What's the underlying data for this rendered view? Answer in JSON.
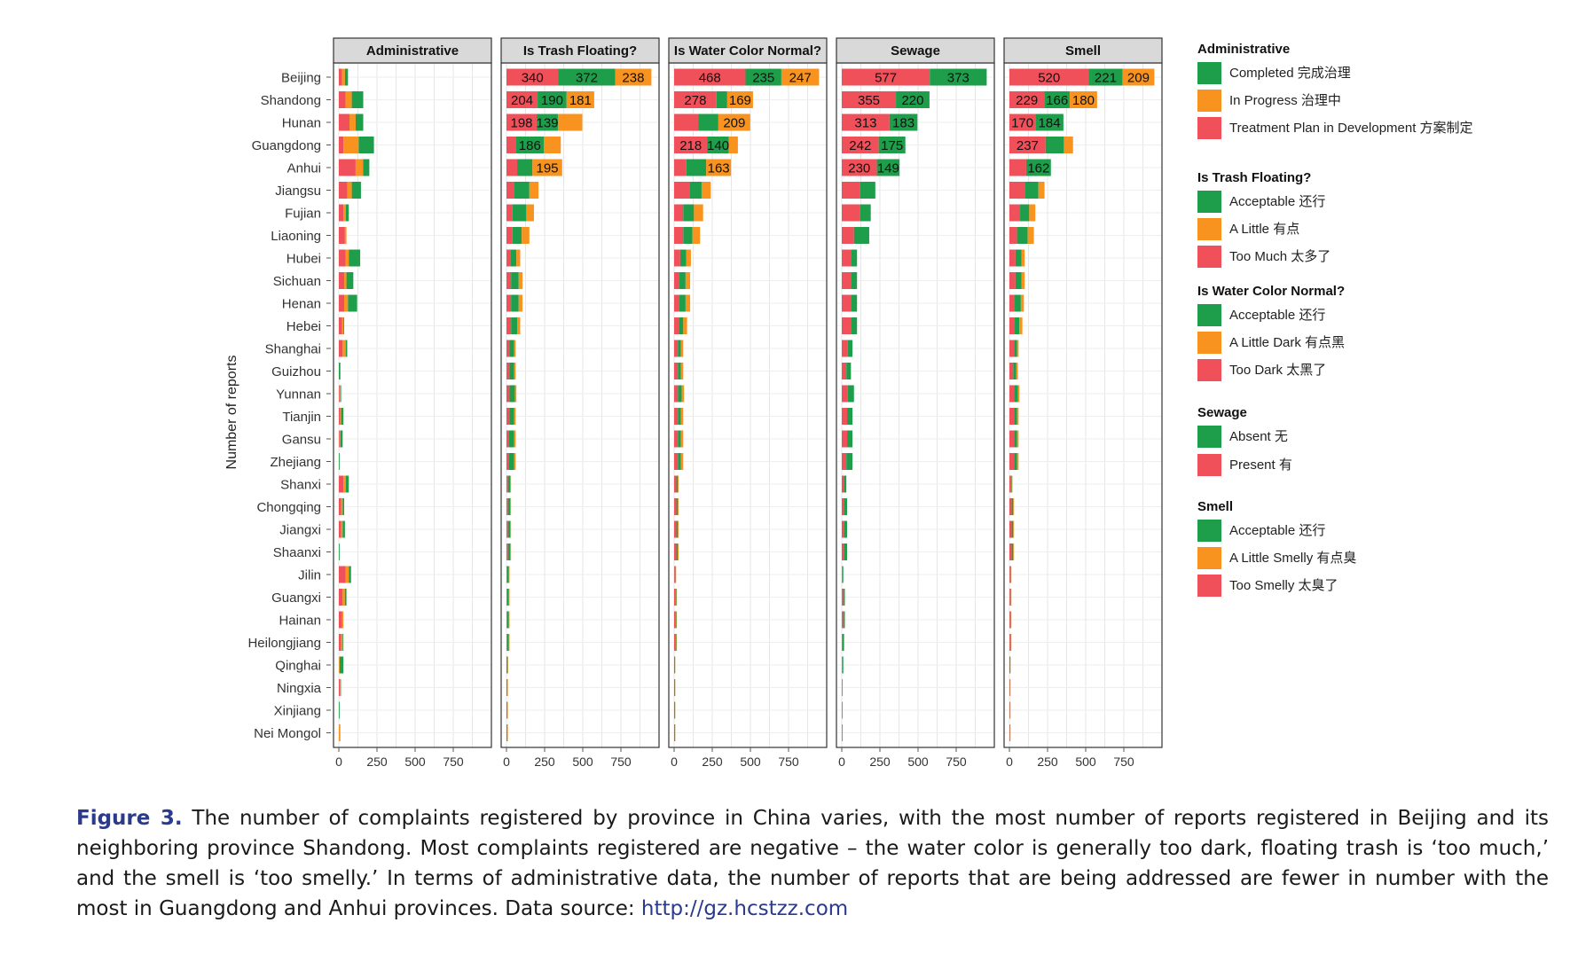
{
  "chart_data": {
    "type": "bar",
    "orientation": "horizontal",
    "stacked": true,
    "ylabel": "Number of reports",
    "grid": true,
    "legend_position": "right",
    "xlim": [
      0,
      1000
    ],
    "xticks": [
      "0",
      "250",
      "500",
      "750"
    ],
    "categories": [
      "Beijing",
      "Shandong",
      "Hunan",
      "Guangdong",
      "Anhui",
      "Jiangsu",
      "Fujian",
      "Liaoning",
      "Hubei",
      "Sichuan",
      "Henan",
      "Hebei",
      "Shanghai",
      "Guizhou",
      "Yunnan",
      "Tianjin",
      "Gansu",
      "Zhejiang",
      "Shanxi",
      "Chongqing",
      "Jiangxi",
      "Shaanxi",
      "Jilin",
      "Guangxi",
      "Hainan",
      "Heilongjiang",
      "Qinghai",
      "Ningxia",
      "Xinjiang",
      "Nei Mongol"
    ],
    "colors": {
      "green": "#1e9e4a",
      "orange": "#f7931e",
      "red": "#f0505a"
    },
    "panels": [
      {
        "title": "Administrative",
        "series": [
          {
            "name": "Treatment Plan in Development 方案制定",
            "color": "#f0505a",
            "values": [
              20,
              45,
              70,
              30,
              110,
              55,
              30,
              40,
              45,
              35,
              35,
              20,
              25,
              0,
              5,
              10,
              5,
              0,
              30,
              15,
              15,
              0,
              45,
              25,
              20,
              15,
              0,
              8,
              0,
              0
            ]
          },
          {
            "name": "In Progress 治理中",
            "color": "#f7931e",
            "values": [
              20,
              40,
              40,
              100,
              50,
              30,
              15,
              10,
              20,
              15,
              25,
              10,
              20,
              0,
              5,
              5,
              5,
              0,
              15,
              10,
              10,
              0,
              20,
              15,
              10,
              10,
              5,
              5,
              0,
              10
            ]
          },
          {
            "name": "Completed 完成治理",
            "color": "#1e9e4a",
            "values": [
              20,
              75,
              50,
              100,
              40,
              60,
              20,
              0,
              75,
              45,
              60,
              5,
              10,
              10,
              5,
              15,
              15,
              5,
              20,
              10,
              15,
              5,
              15,
              10,
              0,
              5,
              25,
              2,
              5,
              0
            ]
          }
        ]
      },
      {
        "title": "Is Trash Floating?",
        "series": [
          {
            "name": "Too Much 太多了",
            "color": "#f0505a",
            "values": [
              340,
              204,
              198,
              60,
              70,
              50,
              40,
              40,
              25,
              30,
              30,
              30,
              20,
              20,
              20,
              20,
              15,
              15,
              10,
              10,
              10,
              10,
              5,
              5,
              5,
              5,
              3,
              3,
              3,
              3
            ]
          },
          {
            "name": "Acceptable 还行",
            "color": "#1e9e4a",
            "values": [
              372,
              190,
              139,
              186,
              100,
              100,
              90,
              60,
              40,
              50,
              50,
              40,
              30,
              30,
              35,
              30,
              35,
              35,
              15,
              15,
              15,
              15,
              10,
              10,
              10,
              10,
              5,
              3,
              3,
              3
            ]
          },
          {
            "name": "A Little 有点",
            "color": "#f7931e",
            "values": [
              238,
              181,
              160,
              110,
              195,
              60,
              50,
              50,
              25,
              25,
              25,
              20,
              10,
              10,
              10,
              10,
              10,
              10,
              5,
              5,
              5,
              5,
              5,
              5,
              5,
              5,
              3,
              3,
              3,
              3
            ]
          }
        ]
      },
      {
        "title": "Is Water Color Normal?",
        "series": [
          {
            "name": "Too Dark 太黑了",
            "color": "#f0505a",
            "values": [
              468,
              278,
              160,
              218,
              80,
              100,
              60,
              60,
              40,
              35,
              35,
              30,
              25,
              25,
              25,
              25,
              25,
              25,
              15,
              15,
              15,
              15,
              5,
              10,
              10,
              10,
              3,
              3,
              3,
              3
            ]
          },
          {
            "name": "Acceptable 还行",
            "color": "#1e9e4a",
            "values": [
              235,
              70,
              130,
              140,
              130,
              80,
              70,
              60,
              40,
              40,
              40,
              30,
              20,
              20,
              25,
              20,
              20,
              20,
              10,
              10,
              10,
              10,
              5,
              5,
              5,
              5,
              3,
              3,
              3,
              3
            ]
          },
          {
            "name": "A Little Dark 有点黑",
            "color": "#f7931e",
            "values": [
              247,
              169,
              209,
              60,
              163,
              60,
              60,
              50,
              30,
              30,
              30,
              25,
              15,
              15,
              15,
              15,
              15,
              15,
              5,
              5,
              5,
              5,
              3,
              3,
              3,
              3,
              2,
              2,
              2,
              2
            ]
          }
        ]
      },
      {
        "title": "Sewage",
        "series": [
          {
            "name": "Present 有",
            "color": "#f0505a",
            "values": [
              577,
              355,
              313,
              242,
              230,
              120,
              120,
              80,
              60,
              60,
              60,
              60,
              40,
              30,
              40,
              35,
              35,
              30,
              15,
              15,
              15,
              15,
              5,
              10,
              10,
              5,
              5,
              3,
              3,
              3
            ]
          },
          {
            "name": "Absent 无",
            "color": "#1e9e4a",
            "values": [
              373,
              220,
              183,
              175,
              149,
              100,
              70,
              100,
              40,
              40,
              40,
              40,
              30,
              30,
              40,
              35,
              35,
              40,
              15,
              20,
              20,
              20,
              5,
              10,
              10,
              10,
              5,
              2,
              2,
              2
            ]
          }
        ]
      },
      {
        "title": "Smell",
        "series": [
          {
            "name": "Too Smelly 太臭了",
            "color": "#f0505a",
            "values": [
              520,
              229,
              170,
              237,
              110,
              100,
              70,
              50,
              40,
              40,
              35,
              35,
              30,
              25,
              30,
              30,
              30,
              30,
              10,
              15,
              15,
              15,
              5,
              5,
              5,
              5,
              3,
              3,
              3,
              3
            ]
          },
          {
            "name": "Acceptable 还行",
            "color": "#1e9e4a",
            "values": [
              221,
              166,
              184,
              120,
              162,
              90,
              60,
              70,
              40,
              40,
              40,
              30,
              20,
              20,
              25,
              20,
              20,
              20,
              5,
              10,
              10,
              10,
              5,
              5,
              5,
              5,
              3,
              2,
              2,
              2
            ]
          },
          {
            "name": "A Little Smelly 有点臭",
            "color": "#f7931e",
            "values": [
              209,
              180,
              0,
              60,
              0,
              40,
              40,
              40,
              20,
              20,
              20,
              20,
              10,
              10,
              10,
              10,
              10,
              10,
              5,
              5,
              5,
              5,
              3,
              3,
              3,
              3,
              2,
              2,
              2,
              2
            ]
          }
        ]
      }
    ],
    "data_labels": [
      {
        "panel": 1,
        "row": 0,
        "series": 0,
        "text": "340"
      },
      {
        "panel": 1,
        "row": 0,
        "series": 1,
        "text": "372"
      },
      {
        "panel": 1,
        "row": 0,
        "series": 2,
        "text": "238"
      },
      {
        "panel": 1,
        "row": 1,
        "series": 0,
        "text": "204"
      },
      {
        "panel": 1,
        "row": 1,
        "series": 1,
        "text": "190"
      },
      {
        "panel": 1,
        "row": 1,
        "series": 2,
        "text": "181"
      },
      {
        "panel": 1,
        "row": 2,
        "series": 0,
        "text": "198"
      },
      {
        "panel": 1,
        "row": 2,
        "series": 1,
        "text": "139"
      },
      {
        "panel": 1,
        "row": 3,
        "series": 1,
        "text": "186"
      },
      {
        "panel": 1,
        "row": 4,
        "series": 2,
        "text": "195"
      },
      {
        "panel": 2,
        "row": 0,
        "series": 0,
        "text": "468"
      },
      {
        "panel": 2,
        "row": 0,
        "series": 1,
        "text": "235"
      },
      {
        "panel": 2,
        "row": 0,
        "series": 2,
        "text": "247"
      },
      {
        "panel": 2,
        "row": 1,
        "series": 0,
        "text": "278"
      },
      {
        "panel": 2,
        "row": 1,
        "series": 2,
        "text": "169"
      },
      {
        "panel": 2,
        "row": 2,
        "series": 2,
        "text": "209"
      },
      {
        "panel": 2,
        "row": 3,
        "series": 0,
        "text": "218"
      },
      {
        "panel": 2,
        "row": 3,
        "series": 1,
        "text": "140"
      },
      {
        "panel": 2,
        "row": 4,
        "series": 2,
        "text": "163"
      },
      {
        "panel": 3,
        "row": 0,
        "series": 0,
        "text": "577"
      },
      {
        "panel": 3,
        "row": 0,
        "series": 1,
        "text": "373"
      },
      {
        "panel": 3,
        "row": 1,
        "series": 0,
        "text": "355"
      },
      {
        "panel": 3,
        "row": 1,
        "series": 1,
        "text": "220"
      },
      {
        "panel": 3,
        "row": 2,
        "series": 0,
        "text": "313"
      },
      {
        "panel": 3,
        "row": 2,
        "series": 1,
        "text": "183"
      },
      {
        "panel": 3,
        "row": 3,
        "series": 0,
        "text": "242"
      },
      {
        "panel": 3,
        "row": 3,
        "series": 1,
        "text": "175"
      },
      {
        "panel": 3,
        "row": 4,
        "series": 0,
        "text": "230"
      },
      {
        "panel": 3,
        "row": 4,
        "series": 1,
        "text": "149"
      },
      {
        "panel": 4,
        "row": 0,
        "series": 0,
        "text": "520"
      },
      {
        "panel": 4,
        "row": 0,
        "series": 1,
        "text": "221"
      },
      {
        "panel": 4,
        "row": 0,
        "series": 2,
        "text": "209"
      },
      {
        "panel": 4,
        "row": 1,
        "series": 0,
        "text": "229"
      },
      {
        "panel": 4,
        "row": 1,
        "series": 1,
        "text": "166"
      },
      {
        "panel": 4,
        "row": 1,
        "series": 2,
        "text": "180"
      },
      {
        "panel": 4,
        "row": 2,
        "series": 0,
        "text": "170"
      },
      {
        "panel": 4,
        "row": 2,
        "series": 1,
        "text": "184"
      },
      {
        "panel": 4,
        "row": 3,
        "series": 0,
        "text": "237"
      },
      {
        "panel": 4,
        "row": 4,
        "series": 1,
        "text": "162"
      }
    ],
    "legend": [
      {
        "title": "Administrative",
        "items": [
          {
            "label": "Completed 完成治理",
            "color": "#1e9e4a"
          },
          {
            "label": "In Progress 治理中",
            "color": "#f7931e"
          },
          {
            "label": "Treatment Plan in Development 方案制定",
            "color": "#f0505a"
          }
        ]
      },
      {
        "title": "Is Trash Floating?",
        "items": [
          {
            "label": "Acceptable 还行",
            "color": "#1e9e4a"
          },
          {
            "label": "A Little 有点",
            "color": "#f7931e"
          },
          {
            "label": "Too Much 太多了",
            "color": "#f0505a"
          }
        ]
      },
      {
        "title": "Is Water Color Normal?",
        "items": [
          {
            "label": "Acceptable 还行",
            "color": "#1e9e4a"
          },
          {
            "label": "A Little Dark 有点黑",
            "color": "#f7931e"
          },
          {
            "label": "Too Dark 太黑了",
            "color": "#f0505a"
          }
        ]
      },
      {
        "title": "Sewage",
        "items": [
          {
            "label": "Absent 无",
            "color": "#1e9e4a"
          },
          {
            "label": "Present 有",
            "color": "#f0505a"
          }
        ]
      },
      {
        "title": "Smell",
        "items": [
          {
            "label": "Acceptable 还行",
            "color": "#1e9e4a"
          },
          {
            "label": "A Little Smelly 有点臭",
            "color": "#f7931e"
          },
          {
            "label": "Too Smelly 太臭了",
            "color": "#f0505a"
          }
        ]
      }
    ]
  },
  "caption": {
    "figure_label": "Figure 3.",
    "text": "The number of complaints registered by province in China varies, with the most number of reports registered in Beijing and its neighboring province Shandong. Most complaints registered are negative – the water color is generally too dark, floating trash is ‘too much,’ and the smell is ‘too smelly.’ In terms of administrative data, the number of reports that are being addressed are fewer in number with the most in Guangdong and Anhui provinces. Data source: ",
    "link": "http://gz.hcstzz.com"
  }
}
